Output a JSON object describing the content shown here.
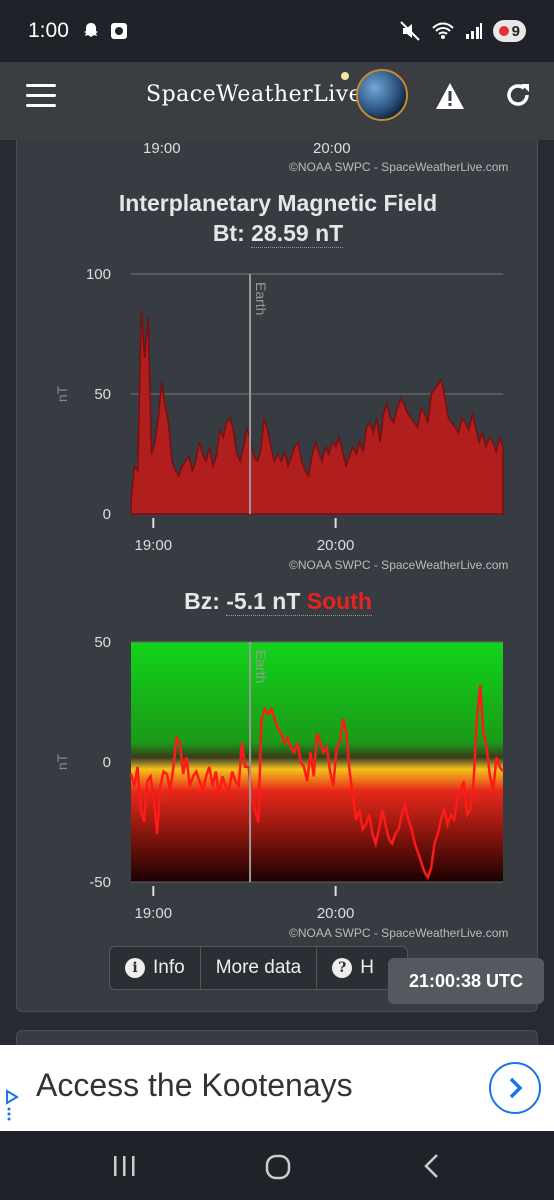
{
  "status": {
    "time": "1:00",
    "battery": "9"
  },
  "app": {
    "brand": "SpaceWeatherLive"
  },
  "top_chart_tail": {
    "x_ticks": [
      "19:00",
      "20:00"
    ],
    "credit": "©NOAA SWPC - SpaceWeatherLive.com"
  },
  "imf": {
    "title": "Interplanetary Magnetic Field",
    "bt_label": "Bt:",
    "bt_value": "28.59 nT"
  },
  "bz": {
    "label": "Bz:",
    "value": "-5.1 nT",
    "direction": "South",
    "direction_color": "#e8241c"
  },
  "chart_data": [
    {
      "type": "area",
      "ylabel": "nT",
      "ylim": [
        0,
        100
      ],
      "y_ticks": [
        "100",
        "50",
        "0"
      ],
      "x_ticks": [
        "19:00",
        "20:00"
      ],
      "marker": "Earth",
      "credit": "©NOAA SWPC - SpaceWeatherLive.com",
      "color": "#b01e1e",
      "values": [
        5,
        20,
        18,
        85,
        65,
        82,
        25,
        30,
        40,
        55,
        45,
        38,
        22,
        18,
        16,
        20,
        22,
        24,
        18,
        22,
        30,
        25,
        22,
        28,
        20,
        24,
        35,
        32,
        38,
        40,
        35,
        25,
        22,
        28,
        36,
        30,
        24,
        22,
        26,
        40,
        35,
        28,
        22,
        25,
        22,
        26,
        20,
        24,
        28,
        30,
        22,
        18,
        16,
        24,
        30,
        26,
        22,
        28,
        25,
        30,
        28,
        32,
        26,
        20,
        24,
        28,
        25,
        30,
        26,
        36,
        38,
        34,
        40,
        30,
        42,
        46,
        40,
        38,
        44,
        48,
        46,
        42,
        40,
        38,
        36,
        44,
        42,
        38,
        50,
        52,
        54,
        56,
        48,
        40,
        38,
        36,
        34,
        40,
        38,
        35,
        42,
        36,
        30,
        34,
        28,
        32,
        30,
        26,
        32,
        28
      ]
    },
    {
      "type": "line",
      "ylabel": "nT",
      "ylim": [
        -50,
        50
      ],
      "y_ticks": [
        "50",
        "0",
        "-50"
      ],
      "x_ticks": [
        "19:00",
        "20:00"
      ],
      "marker": "Earth",
      "credit": "©NOAA SWPC - SpaceWeatherLive.com",
      "color": "#ff1a1a",
      "values": [
        -5,
        -10,
        -2,
        -20,
        -25,
        -8,
        -6,
        -15,
        -30,
        -10,
        -4,
        -5,
        -12,
        -2,
        10,
        8,
        -5,
        2,
        -10,
        -6,
        -4,
        -8,
        -12,
        -6,
        -2,
        -10,
        -4,
        -14,
        -6,
        -10,
        -12,
        -4,
        -8,
        -10,
        8,
        -2,
        -2,
        -14,
        -20,
        -25,
        18,
        22,
        20,
        22,
        18,
        14,
        12,
        8,
        10,
        6,
        4,
        8,
        0,
        -2,
        -8,
        4,
        -6,
        12,
        8,
        4,
        6,
        -4,
        -10,
        6,
        8,
        18,
        12,
        -4,
        -14,
        -24,
        -20,
        -28,
        -26,
        -22,
        -30,
        -34,
        -28,
        -20,
        -26,
        -32,
        -34,
        -30,
        -28,
        -22,
        -18,
        -24,
        -28,
        -34,
        -38,
        -42,
        -46,
        -48,
        -44,
        -34,
        -30,
        -24,
        -20,
        -26,
        -22,
        -24,
        -16,
        -12,
        -8,
        -22,
        -20,
        -8,
        18,
        32,
        12,
        6,
        -6,
        -12,
        2,
        -2,
        -4
      ]
    }
  ],
  "buttons": {
    "info": "Info",
    "more": "More data",
    "help": "Help",
    "help_visible": "H"
  },
  "clock": {
    "utc": "21:00:38 UTC"
  },
  "ad": {
    "text": "Access the Kootenays"
  }
}
